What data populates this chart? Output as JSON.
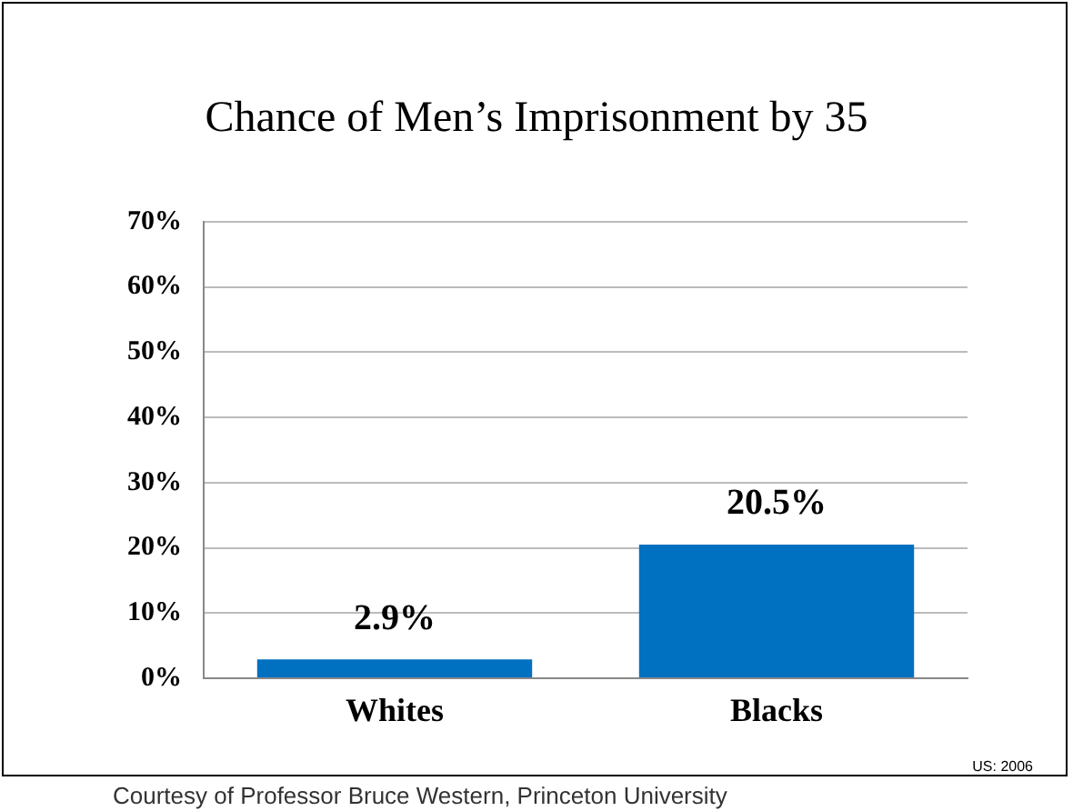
{
  "chart_data": {
    "type": "bar",
    "title": "Chance of Men’s Imprisonment by 35",
    "categories": [
      "Whites",
      "Blacks"
    ],
    "values": [
      2.9,
      20.5
    ],
    "color": "#0070c0",
    "value_labels": [
      "2.9%",
      "20.5%"
    ],
    "ylim": [
      0,
      70
    ],
    "yticks": [
      {
        "value": 0,
        "label": "0%"
      },
      {
        "value": 10,
        "label": "10%"
      },
      {
        "value": 20,
        "label": "20%"
      },
      {
        "value": 30,
        "label": "30%"
      },
      {
        "value": 40,
        "label": "40%"
      },
      {
        "value": 50,
        "label": "50%"
      },
      {
        "value": 60,
        "label": "60%"
      },
      {
        "value": 70,
        "label": "70%"
      }
    ],
    "grid": "y",
    "legend": false,
    "annotations": [
      "US: 2006",
      "Courtesy of Professor Bruce Western, Princeton University"
    ]
  }
}
